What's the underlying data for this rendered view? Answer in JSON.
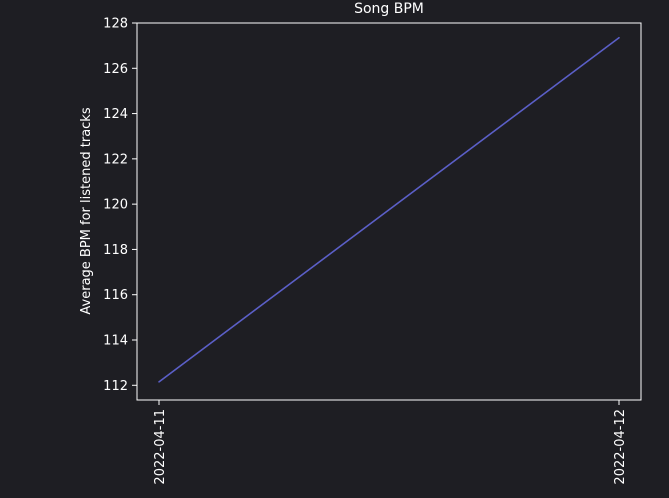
{
  "colors": {
    "background": "#1e1e23",
    "axes": "#ffffff",
    "line": "#5b5fc7",
    "text": "#ffffff"
  },
  "chart_data": {
    "type": "line",
    "title": "Song BPM",
    "xlabel": "",
    "ylabel": "Average BPM for listened tracks",
    "x": [
      "2022-04-11",
      "2022-04-12"
    ],
    "series": [
      {
        "values": [
          112.15,
          127.35
        ]
      }
    ],
    "ylim": [
      111.35,
      128.0
    ],
    "yticks": [
      112,
      114,
      116,
      118,
      120,
      122,
      124,
      126,
      128
    ],
    "xticks": [
      "2022-04-11",
      "2022-04-12"
    ],
    "x_tick_rotation": 90,
    "grid": false,
    "legend": "none"
  }
}
